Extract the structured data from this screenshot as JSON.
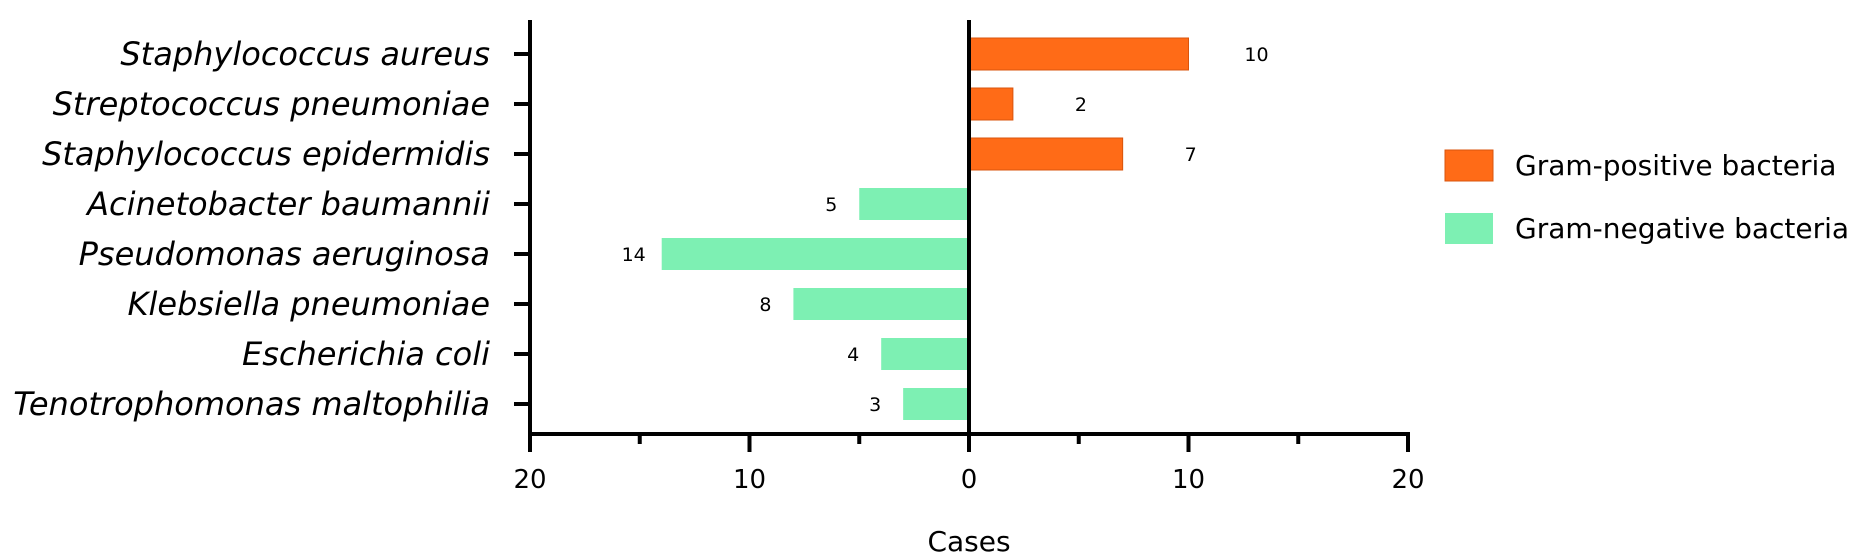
{
  "chart_data": {
    "type": "bar",
    "orientation": "horizontal-diverging",
    "categories": [
      "Staphylococcus aureus",
      "Streptococcus pneumoniae",
      "Staphylococcus epidermidis",
      "Acinetobacter baumannii",
      "Pseudomonas aeruginosa",
      "Klebsiella pneumoniae",
      "Escherichia coli",
      "Tenotrophomonas maltophilia"
    ],
    "series": [
      {
        "name": "Gram-positive bacteria",
        "color": "#ff6b17",
        "side": "right",
        "values": [
          10,
          2,
          7,
          null,
          null,
          null,
          null,
          null
        ]
      },
      {
        "name": "Gram-negative bacteria",
        "color": "#7df0b3",
        "side": "left",
        "values": [
          null,
          null,
          null,
          5,
          14,
          8,
          4,
          3
        ]
      }
    ],
    "xlabel": "Cases",
    "xlim": [
      -20,
      20
    ],
    "xticks": [
      -20,
      -10,
      0,
      10,
      20
    ],
    "xtick_labels": [
      "20",
      "10",
      "0",
      "10",
      "20"
    ],
    "legend_position": "right",
    "grid": false
  }
}
